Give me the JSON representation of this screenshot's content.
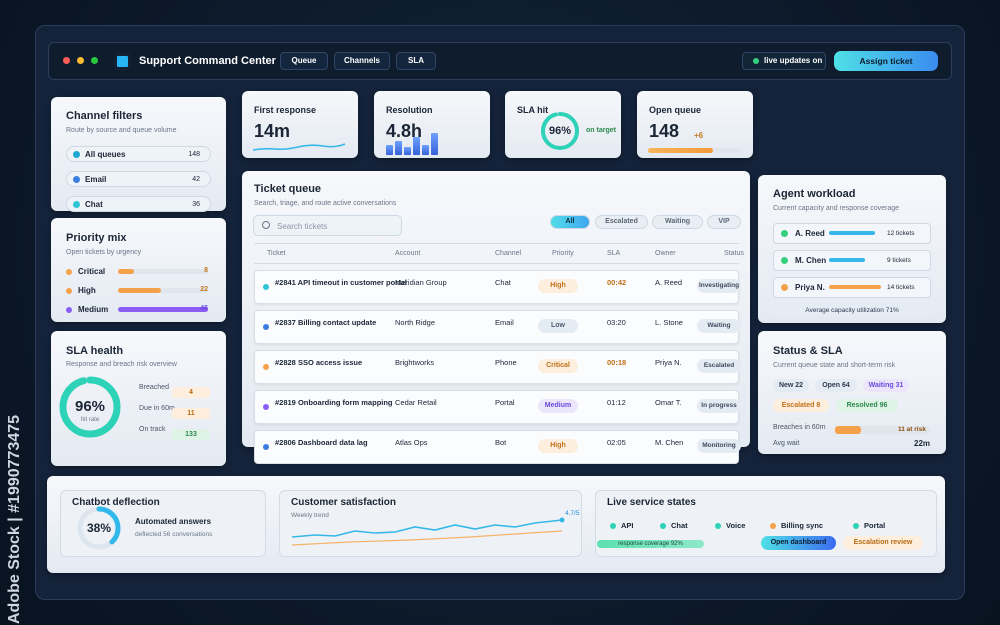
{
  "watermark": "Adobe Stock | #1990773475",
  "header": {
    "title": "Support Command Center",
    "tabs": [
      "Queue",
      "Channels",
      "SLA"
    ],
    "live": "live updates on",
    "button": "Assign ticket"
  },
  "channel_filters": {
    "title": "Channel filters",
    "subtitle": "Route by source and queue volume",
    "items": [
      {
        "label": "All queues",
        "count": 148,
        "color": "#1ea7d6"
      },
      {
        "label": "Email",
        "count": 42,
        "color": "#3b7de0"
      },
      {
        "label": "Chat",
        "count": 36,
        "color": "#2ec4d6"
      }
    ]
  },
  "priority_mix": {
    "title": "Priority mix",
    "subtitle": "Open tickets by urgency",
    "items": [
      {
        "label": "Critical",
        "count": 8,
        "color": "#f5a14a"
      },
      {
        "label": "High",
        "count": 22,
        "color": "#f5a14a"
      },
      {
        "label": "Medium",
        "count": 46,
        "color": "#8b5cf6"
      }
    ]
  },
  "sla_health": {
    "title": "SLA health",
    "subtitle": "Response and breach risk overview",
    "value": "96%",
    "caption": "hit rate",
    "items": [
      {
        "label": "Breached",
        "count": 4
      },
      {
        "label": "Due in 60m",
        "count": 11
      },
      {
        "label": "On track",
        "count": 133
      }
    ]
  },
  "kpis": [
    {
      "title": "First response",
      "value": "14m"
    },
    {
      "title": "Resolution",
      "value": "4.8h"
    },
    {
      "title": "SLA hit",
      "value": "96%",
      "note": "on target"
    },
    {
      "title": "Open queue",
      "value": 148,
      "note": "+6"
    }
  ],
  "ticket_queue": {
    "title": "Ticket queue",
    "subtitle": "Search, triage, and route active conversations",
    "search": "Search tickets",
    "filters": [
      "All",
      "Escalated",
      "Waiting",
      "VIP"
    ],
    "columns": [
      "Ticket",
      "Account",
      "Channel",
      "Priority",
      "SLA",
      "Owner",
      "Status"
    ],
    "rows": [
      [
        "#2841 API timeout in customer portal",
        "Meridian Group",
        "Chat",
        "High",
        "00:42",
        "A. Reed",
        "Investigating"
      ],
      [
        "#2837 Billing contact update",
        "North Ridge",
        "Email",
        "Low",
        "03:20",
        "L. Stone",
        "Waiting"
      ],
      [
        "#2828 SSO access issue",
        "Brightworks",
        "Phone",
        "Critical",
        "00:18",
        "Priya N.",
        "Escalated"
      ],
      [
        "#2819 Onboarding form mapping",
        "Cedar Retail",
        "Portal",
        "Medium",
        "01:12",
        "Omar T.",
        "In progress"
      ],
      [
        "#2806 Dashboard data lag",
        "Atlas Ops",
        "Bot",
        "High",
        "02:05",
        "M. Chen",
        "Monitoring"
      ]
    ]
  },
  "agent_workload": {
    "title": "Agent workload",
    "subtitle": "Current capacity and response coverage",
    "agents": [
      {
        "name": "A. Reed",
        "tickets": "12 tickets"
      },
      {
        "name": "M. Chen",
        "tickets": "9 tickets"
      },
      {
        "name": "Priya N.",
        "tickets": "14 tickets"
      }
    ],
    "footer": "Average capacity utilization 71%"
  },
  "status_sla": {
    "title": "Status & SLA",
    "subtitle": "Current queue state and short-term risk",
    "chips": [
      "New 22",
      "Open 64",
      "Waiting 31",
      "Escalated 8",
      "Resolved 96"
    ],
    "breaches_label": "Breaches in 60m",
    "breaches_value": "11 at risk",
    "avg_label": "Avg wait",
    "avg_value": "22m"
  },
  "chatbot": {
    "title": "Chatbot deflection",
    "value": "38%",
    "label": "Automated answers",
    "sub": "deflected 56 conversations"
  },
  "csat": {
    "title": "Customer satisfaction",
    "subtitle": "Weekly trend",
    "value": "4.7/5"
  },
  "live_states": {
    "title": "Live service states",
    "services": [
      "API",
      "Chat",
      "Voice",
      "Billing sync",
      "Portal"
    ],
    "coverage": "response coverage 92%",
    "primary": "Open dashboard",
    "secondary": "Escalation review"
  }
}
